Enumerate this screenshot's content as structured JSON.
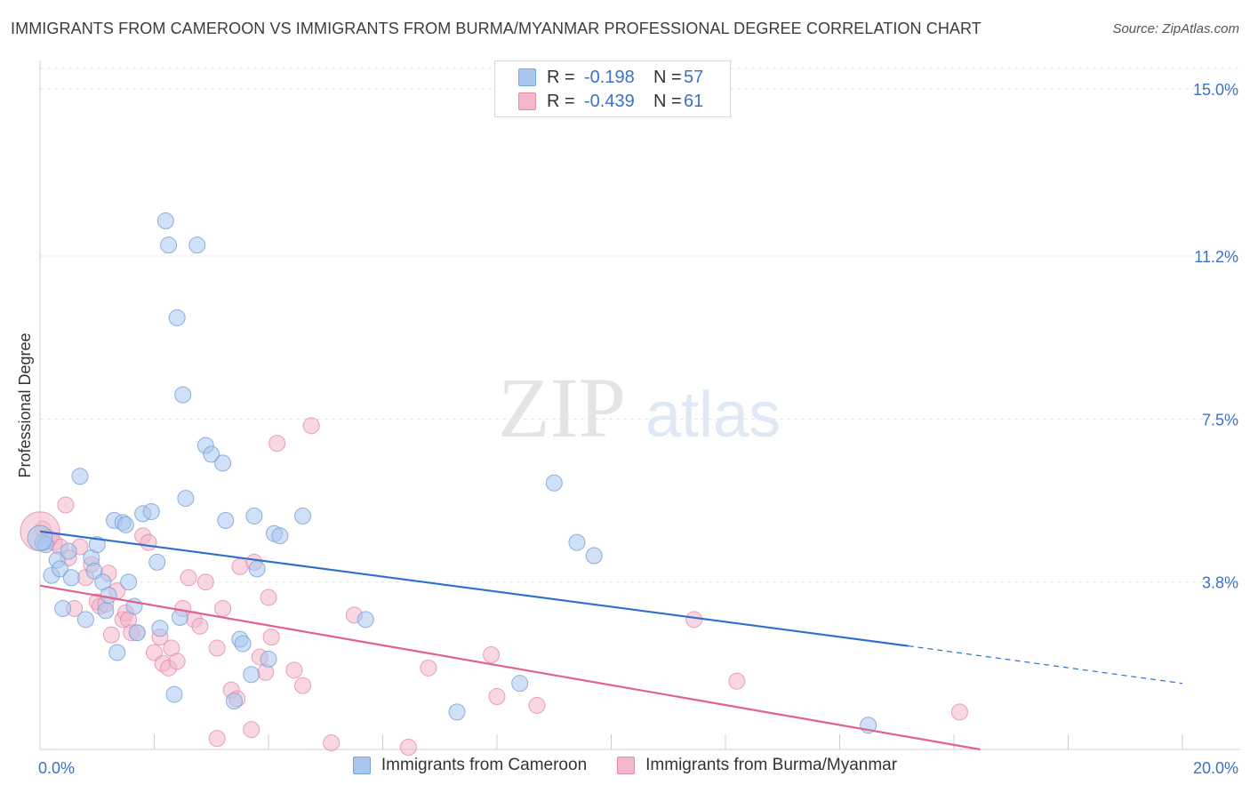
{
  "title": "IMMIGRANTS FROM CAMEROON VS IMMIGRANTS FROM BURMA/MYANMAR PROFESSIONAL DEGREE CORRELATION CHART",
  "source": "Source: ZipAtlas.com",
  "watermark": {
    "zip": "ZIP",
    "atlas": "atlas"
  },
  "legend": {
    "rows": [
      {
        "r_label": "R =",
        "r_value": "-0.198",
        "n_label": "N =",
        "n_value": "57",
        "color": "#a9c7ee"
      },
      {
        "r_label": "R =",
        "r_value": "-0.439",
        "n_label": "N =",
        "n_value": "61",
        "color": "#f4b6ca"
      }
    ]
  },
  "colors": {
    "blue_fill": "#a9c7ee",
    "blue_stroke": "#7aa3d8",
    "blue_line": "#2e6fce",
    "pink_fill": "#f4b6ca",
    "pink_stroke": "#e58aa8",
    "pink_line": "#e0628f",
    "axis_label": "#3a72c8"
  },
  "chart_data": {
    "type": "scatter",
    "title": "IMMIGRANTS FROM CAMEROON VS IMMIGRANTS FROM BURMA/MYANMAR PROFESSIONAL DEGREE CORRELATION CHART",
    "xlabel": "",
    "ylabel": "Professional Degree",
    "xlim": [
      0,
      20
    ],
    "ylim": [
      0,
      15.5
    ],
    "x_tick_labels": [
      "0.0%",
      "20.0%"
    ],
    "y_ticks": [
      3.8,
      7.5,
      11.2,
      15.0
    ],
    "y_tick_labels": [
      "3.8%",
      "7.5%",
      "11.2%",
      "15.0%"
    ],
    "grid": true,
    "legend_position": "top-center",
    "series": [
      {
        "name": "Immigrants from Cameroon",
        "color": "#a9c7ee",
        "trend": {
          "x0": 0,
          "y0": 4.95,
          "x1": 15.2,
          "y1": 2.35,
          "dash_to_x": 20,
          "dash_to_y": 1.5
        },
        "points": [
          [
            0.05,
            4.7
          ],
          [
            0.1,
            4.65
          ],
          [
            0.2,
            3.95
          ],
          [
            0.3,
            4.3
          ],
          [
            0.35,
            4.1
          ],
          [
            0.4,
            3.2
          ],
          [
            0.5,
            4.5
          ],
          [
            0.55,
            3.9
          ],
          [
            0.7,
            6.2
          ],
          [
            0.8,
            2.95
          ],
          [
            0.9,
            4.35
          ],
          [
            0.95,
            4.05
          ],
          [
            1.0,
            4.65
          ],
          [
            1.1,
            3.8
          ],
          [
            1.15,
            3.15
          ],
          [
            1.2,
            3.5
          ],
          [
            1.3,
            5.2
          ],
          [
            1.35,
            2.2
          ],
          [
            1.45,
            5.15
          ],
          [
            1.5,
            5.1
          ],
          [
            1.55,
            3.8
          ],
          [
            1.65,
            3.25
          ],
          [
            1.7,
            2.65
          ],
          [
            1.8,
            5.35
          ],
          [
            1.95,
            5.4
          ],
          [
            2.05,
            4.25
          ],
          [
            2.1,
            2.75
          ],
          [
            2.2,
            12.0
          ],
          [
            2.25,
            11.45
          ],
          [
            2.35,
            1.25
          ],
          [
            2.4,
            9.8
          ],
          [
            2.45,
            3.0
          ],
          [
            2.5,
            8.05
          ],
          [
            2.55,
            5.7
          ],
          [
            2.75,
            11.45
          ],
          [
            2.9,
            6.9
          ],
          [
            3.0,
            6.7
          ],
          [
            3.2,
            6.5
          ],
          [
            3.25,
            5.2
          ],
          [
            3.4,
            1.1
          ],
          [
            3.5,
            2.5
          ],
          [
            3.55,
            2.4
          ],
          [
            3.7,
            1.7
          ],
          [
            3.75,
            5.3
          ],
          [
            3.8,
            4.1
          ],
          [
            4.0,
            2.05
          ],
          [
            4.1,
            4.9
          ],
          [
            4.2,
            4.85
          ],
          [
            4.6,
            5.3
          ],
          [
            5.7,
            2.95
          ],
          [
            7.3,
            0.85
          ],
          [
            8.4,
            1.5
          ],
          [
            9.0,
            6.05
          ],
          [
            9.4,
            4.7
          ],
          [
            9.7,
            4.4
          ],
          [
            14.5,
            0.55
          ],
          [
            0.0,
            4.8
          ]
        ]
      },
      {
        "name": "Immigrants from Burma/Myanmar",
        "color": "#f4b6ca",
        "trend": {
          "x0": 0,
          "y0": 3.72,
          "x1": 20,
          "y1": -0.8
        },
        "points": [
          [
            0.05,
            5.0
          ],
          [
            0.15,
            4.8
          ],
          [
            0.25,
            4.7
          ],
          [
            0.35,
            4.6
          ],
          [
            0.45,
            5.55
          ],
          [
            0.5,
            4.35
          ],
          [
            0.6,
            3.2
          ],
          [
            0.7,
            4.6
          ],
          [
            0.8,
            3.9
          ],
          [
            0.9,
            4.2
          ],
          [
            1.0,
            3.35
          ],
          [
            1.05,
            3.25
          ],
          [
            1.15,
            3.3
          ],
          [
            1.2,
            4.0
          ],
          [
            1.25,
            2.6
          ],
          [
            1.35,
            3.6
          ],
          [
            1.45,
            2.95
          ],
          [
            1.5,
            3.1
          ],
          [
            1.55,
            2.95
          ],
          [
            1.6,
            2.65
          ],
          [
            1.7,
            2.65
          ],
          [
            1.8,
            4.85
          ],
          [
            1.9,
            4.7
          ],
          [
            2.0,
            2.2
          ],
          [
            2.1,
            2.55
          ],
          [
            2.15,
            1.95
          ],
          [
            2.25,
            1.85
          ],
          [
            2.3,
            2.3
          ],
          [
            2.4,
            2.0
          ],
          [
            2.5,
            3.2
          ],
          [
            2.6,
            3.9
          ],
          [
            2.7,
            2.95
          ],
          [
            2.8,
            2.8
          ],
          [
            2.9,
            3.8
          ],
          [
            3.1,
            0.25
          ],
          [
            3.1,
            2.3
          ],
          [
            3.2,
            3.2
          ],
          [
            3.35,
            1.35
          ],
          [
            3.45,
            1.15
          ],
          [
            3.5,
            4.15
          ],
          [
            3.7,
            0.45
          ],
          [
            3.75,
            4.25
          ],
          [
            3.85,
            2.1
          ],
          [
            3.95,
            1.75
          ],
          [
            4.0,
            3.45
          ],
          [
            4.05,
            2.55
          ],
          [
            4.15,
            6.95
          ],
          [
            4.45,
            1.8
          ],
          [
            4.6,
            1.45
          ],
          [
            4.75,
            7.35
          ],
          [
            5.1,
            0.15
          ],
          [
            5.5,
            3.05
          ],
          [
            6.45,
            0.05
          ],
          [
            6.8,
            1.85
          ],
          [
            7.9,
            2.15
          ],
          [
            8.0,
            1.2
          ],
          [
            8.7,
            1.0
          ],
          [
            11.45,
            2.95
          ],
          [
            12.2,
            1.55
          ],
          [
            16.1,
            0.85
          ],
          [
            0.0,
            4.95
          ]
        ]
      }
    ]
  }
}
